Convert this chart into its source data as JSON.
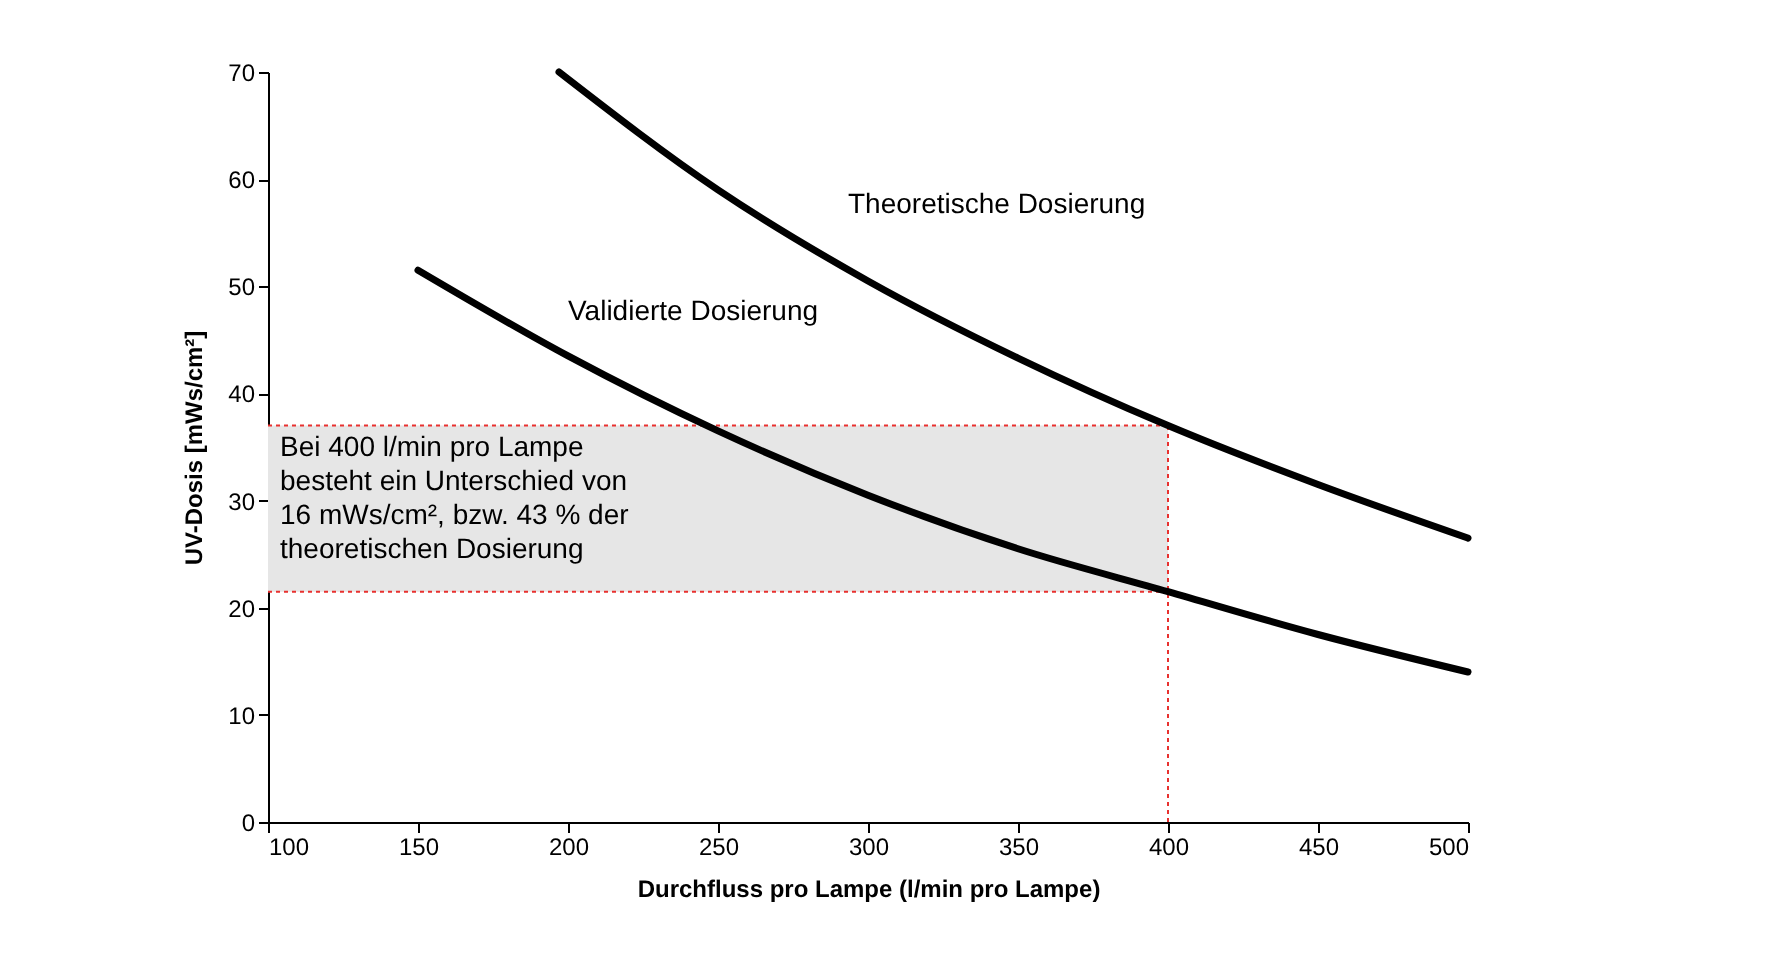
{
  "chart_data": {
    "type": "line",
    "xlabel": "Durchfluss pro Lampe (l/min pro Lampe)",
    "ylabel": "UV-Dosis [mWs/cm²]",
    "xlim": [
      100,
      500
    ],
    "xticks": [
      100,
      150,
      200,
      250,
      300,
      350,
      400,
      450,
      500
    ],
    "ylim": [
      0,
      70
    ],
    "yticks": [
      0,
      10,
      20,
      30,
      40,
      50,
      60,
      70
    ],
    "grid": false,
    "marker": "none",
    "line_style": "solid",
    "series": [
      {
        "name": "Theoretische Dosierung",
        "color": "#000000",
        "x": [
          197,
          250,
          300,
          350,
          400,
          450,
          500
        ],
        "values": [
          70,
          59,
          50.5,
          43.3,
          37,
          31.5,
          26.5
        ]
      },
      {
        "name": "Validierte Dosierung",
        "color": "#000000",
        "x": [
          150,
          200,
          250,
          300,
          350,
          400,
          450,
          500
        ],
        "values": [
          51.5,
          43.5,
          36.5,
          30.5,
          25.5,
          21.5,
          17.5,
          14
        ]
      }
    ],
    "bands": [
      {
        "axis": "y",
        "from": 21.5,
        "to": 37,
        "color": "#e6e6e6",
        "label": "Bei 400 l/min pro Lampe\nbesteht ein Unterschied von\n16 mWs/cm², bzw. 43 % der\ntheoretischen Dosierung"
      }
    ],
    "ref_lines": [
      {
        "axis": "x",
        "value": 400,
        "color": "#e8312f",
        "line_style": "dotted"
      }
    ]
  }
}
